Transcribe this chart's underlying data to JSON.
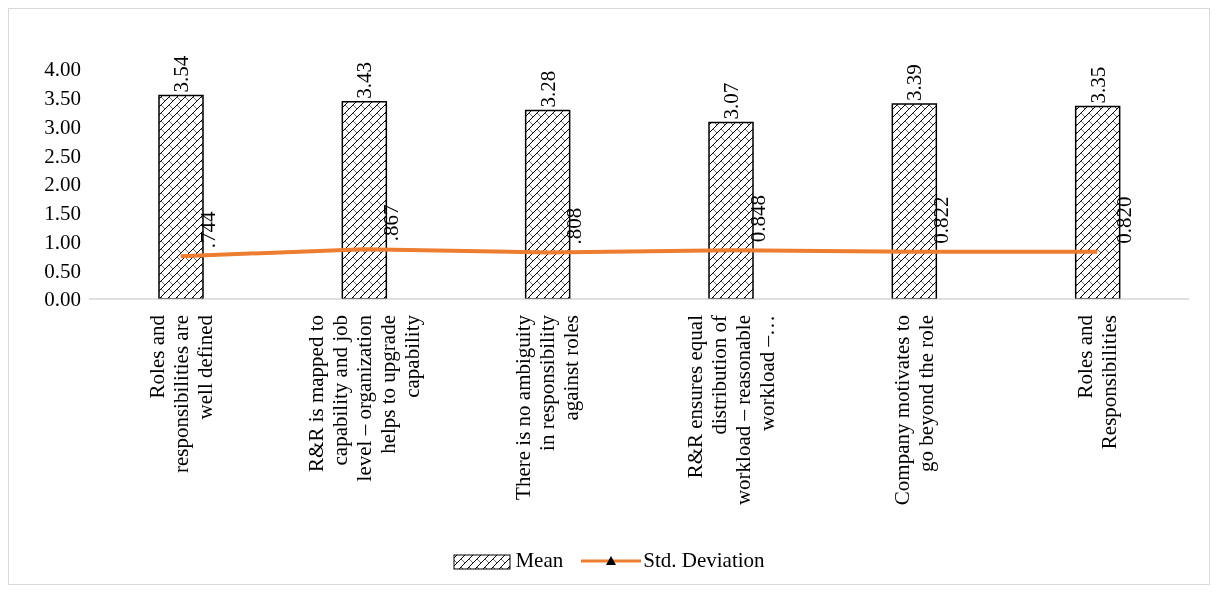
{
  "chart_data": {
    "type": "bar",
    "categories": [
      "Roles and responsibilities are well defined",
      "R&R is mapped to capability and job level – organization helps to upgrade capability",
      "There is no ambiguity in responsibility against roles",
      "R&R ensures equal distribution of workload – reasonable workload –…",
      "Company motivates to go beyond the role",
      "Roles and Responsibilities"
    ],
    "series": [
      {
        "name": "Mean",
        "color": "#000000",
        "values": [
          3.54,
          3.43,
          3.28,
          3.07,
          3.39,
          3.35
        ]
      },
      {
        "name": "Std. Deviation",
        "type": "line",
        "color": "#ed7d31",
        "values": [
          0.744,
          0.867,
          0.808,
          0.848,
          0.822,
          0.82
        ],
        "value_labels": [
          ".744",
          ".867",
          ".808",
          "0.848",
          "0.822",
          "0.820"
        ]
      }
    ],
    "data_labels": true,
    "ylim": [
      0,
      4
    ],
    "yticks": [
      {
        "value": 0,
        "label": "0.00"
      },
      {
        "value": 0.5,
        "label": "0.50"
      },
      {
        "value": 1,
        "label": "1.00"
      },
      {
        "value": 1.5,
        "label": "1.50"
      },
      {
        "value": 2,
        "label": "2.00"
      },
      {
        "value": 2.5,
        "label": "2.50"
      },
      {
        "value": 3,
        "label": "3.00"
      },
      {
        "value": 3.5,
        "label": "3.50"
      },
      {
        "value": 4,
        "label": "4.00"
      }
    ],
    "grid": false,
    "legend": "bottom"
  }
}
